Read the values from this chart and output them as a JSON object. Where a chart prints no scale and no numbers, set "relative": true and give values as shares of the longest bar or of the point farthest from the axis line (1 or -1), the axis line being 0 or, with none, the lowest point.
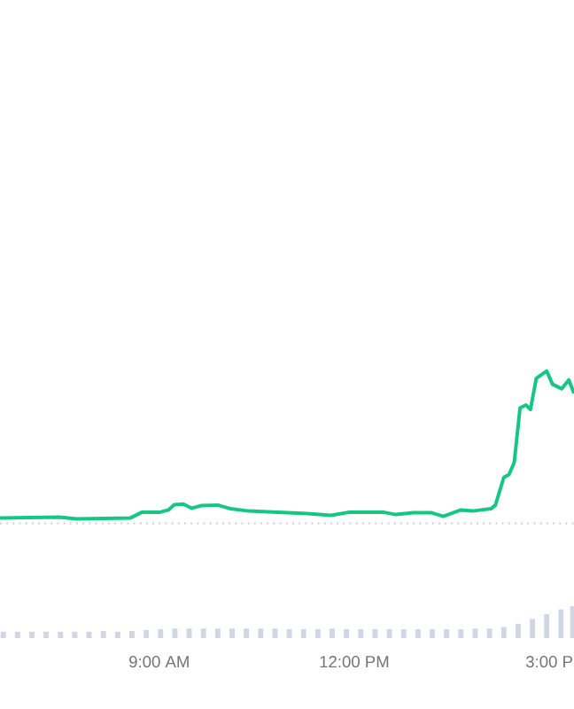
{
  "chart_data": [
    {
      "type": "line",
      "relative": true,
      "xlim": [
        6.55,
        15.38
      ],
      "series": [
        {
          "color": "#16c784",
          "x": [
            6.55,
            7.46,
            7.73,
            8.55,
            8.73,
            9.0,
            9.14,
            9.23,
            9.37,
            9.5,
            9.64,
            9.91,
            10.1,
            10.37,
            10.82,
            11.28,
            11.64,
            11.91,
            12.46,
            12.64,
            12.91,
            13.19,
            13.37,
            13.64,
            13.82,
            14.1,
            14.17,
            14.3,
            14.38,
            14.46,
            14.55,
            14.64,
            14.71,
            14.8,
            14.96,
            15.05,
            15.19,
            15.3,
            15.38
          ],
          "values": [
            0.005,
            0.012,
            0,
            0.005,
            0.044,
            0.044,
            0.06,
            0.096,
            0.1,
            0.072,
            0.089,
            0.092,
            0.068,
            0.053,
            0.044,
            0.036,
            0.024,
            0.044,
            0.044,
            0.029,
            0.041,
            0.041,
            0.017,
            0.06,
            0.053,
            0.068,
            0.092,
            0.28,
            0.3,
            0.38,
            0.75,
            0.77,
            0.74,
            0.95,
            1,
            0.91,
            0.88,
            0.94,
            0.85
          ]
        }
      ],
      "ref_lines": [
        {
          "axis": "y",
          "value": -0.03,
          "color": "#c8ccd4",
          "line_style": "dotted"
        }
      ]
    },
    {
      "type": "bar",
      "relative": true,
      "xlim": [
        6.55,
        15.38
      ],
      "xticks": [
        {
          "value": 9,
          "label": "9:00 AM"
        },
        {
          "value": 12,
          "label": "12:00 PM"
        },
        {
          "value": 15,
          "label": "3:00 P"
        }
      ],
      "series": [
        {
          "color": "#cfd6e4",
          "x": [
            6.6,
            6.82,
            7.04,
            7.26,
            7.48,
            7.7,
            7.92,
            8.14,
            8.36,
            8.58,
            8.8,
            9.02,
            9.24,
            9.46,
            9.68,
            9.9,
            10.12,
            10.34,
            10.56,
            10.78,
            11.0,
            11.22,
            11.44,
            11.66,
            11.88,
            12.1,
            12.32,
            12.54,
            12.76,
            12.98,
            13.2,
            13.42,
            13.64,
            13.86,
            14.08,
            14.3,
            14.52,
            14.74,
            14.96,
            15.18,
            15.36
          ],
          "values": [
            0.2,
            0.2,
            0.2,
            0.2,
            0.2,
            0.2,
            0.2,
            0.22,
            0.2,
            0.22,
            0.25,
            0.28,
            0.3,
            0.3,
            0.3,
            0.3,
            0.3,
            0.3,
            0.3,
            0.3,
            0.28,
            0.28,
            0.28,
            0.3,
            0.28,
            0.28,
            0.28,
            0.28,
            0.28,
            0.28,
            0.28,
            0.28,
            0.28,
            0.3,
            0.3,
            0.35,
            0.45,
            0.6,
            0.75,
            0.9,
            1
          ]
        }
      ]
    }
  ]
}
